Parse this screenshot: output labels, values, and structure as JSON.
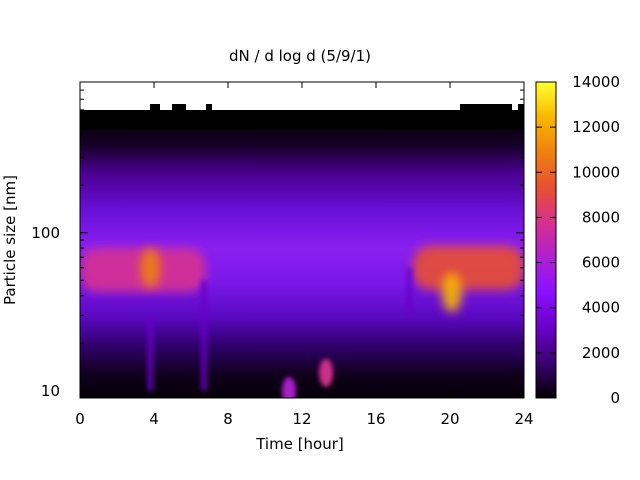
{
  "chart_data": {
    "type": "heatmap",
    "title": "dN / d log d (5/9/1)",
    "xlabel": "Time [hour]",
    "ylabel": "Particle size [nm]",
    "x_ticks": [
      "0",
      "4",
      "8",
      "12",
      "16",
      "20",
      "24"
    ],
    "xlim": [
      0,
      24
    ],
    "y_scale": "log",
    "y_ticks": [
      "10",
      "100"
    ],
    "ylim": [
      9,
      900
    ],
    "colorbar": {
      "ticks": [
        "0",
        "2000",
        "4000",
        "6000",
        "8000",
        "10000",
        "12000",
        "14000"
      ],
      "range": [
        0,
        14000
      ],
      "palette": [
        "#000000",
        "#3a0070",
        "#6a00c8",
        "#8a10ff",
        "#b020d0",
        "#d83090",
        "#e85030",
        "#f08010",
        "#f8b800",
        "#ffff30"
      ]
    },
    "features": [
      {
        "kind": "band",
        "time_range": [
          0,
          6.8
        ],
        "size_center_nm": 58,
        "level": 7000
      },
      {
        "kind": "peak",
        "time_hour": 3.8,
        "size_nm": 60,
        "level": 11500
      },
      {
        "kind": "band",
        "time_range": [
          18,
          24
        ],
        "size_center_nm": 60,
        "level": 9500
      },
      {
        "kind": "peak",
        "time_hour": 20.1,
        "size_nm": 42,
        "level": 12000
      },
      {
        "kind": "spot",
        "time_hour": 13.3,
        "size_nm": 13,
        "level": 8000
      },
      {
        "kind": "spot",
        "time_hour": 11.3,
        "size_nm": 10,
        "level": 6500
      },
      {
        "kind": "dip",
        "time_hour": 3.8,
        "size_range_nm": [
          10,
          30
        ]
      },
      {
        "kind": "dip",
        "time_hour": 6.7,
        "size_range_nm": [
          10,
          50
        ]
      },
      {
        "kind": "dip",
        "time_hour": 17.8,
        "size_range_nm": [
          30,
          60
        ]
      }
    ]
  }
}
